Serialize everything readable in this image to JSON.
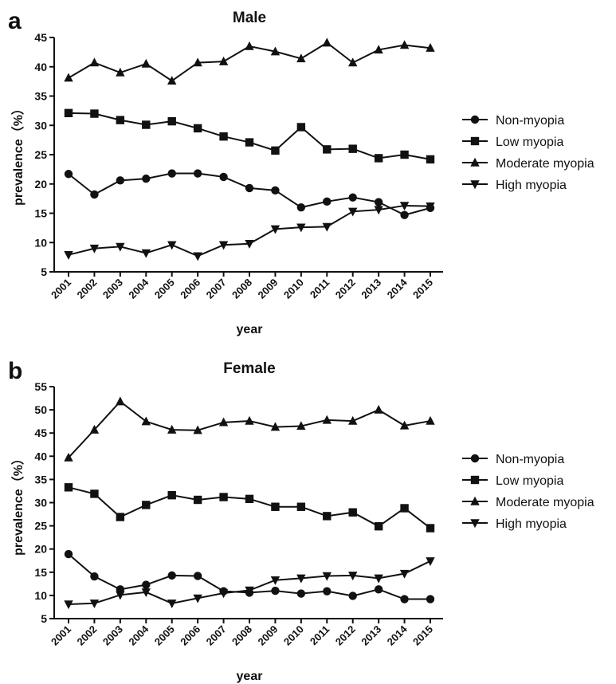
{
  "chart_data": [
    {
      "panel": "a",
      "type": "line",
      "title": "Male",
      "xlabel": "year",
      "ylabel": "prevalence（%）",
      "ylim": [
        5,
        45
      ],
      "yticks": [
        5,
        10,
        15,
        20,
        25,
        30,
        35,
        40,
        45
      ],
      "x": [
        "2001",
        "2002",
        "2003",
        "2004",
        "2005",
        "2006",
        "2007",
        "2008",
        "2009",
        "2010",
        "2011",
        "2012",
        "2013",
        "2014",
        "2015"
      ],
      "grid": false,
      "legend_position": "right",
      "series": [
        {
          "name": "Non-myopia",
          "marker": "circle",
          "values": [
            21.7,
            18.2,
            20.6,
            20.9,
            21.8,
            21.8,
            21.2,
            19.3,
            18.9,
            16.0,
            17.0,
            17.7,
            16.9,
            14.7,
            15.9
          ]
        },
        {
          "name": "Low myopia",
          "marker": "square",
          "values": [
            32.1,
            32.0,
            30.9,
            30.1,
            30.7,
            29.5,
            28.1,
            27.1,
            25.7,
            29.7,
            25.9,
            26.0,
            24.4,
            25.0,
            24.2
          ]
        },
        {
          "name": "Moderate myopia",
          "marker": "triangle-up",
          "values": [
            38.1,
            40.7,
            39.0,
            40.5,
            37.6,
            40.7,
            40.9,
            43.5,
            42.6,
            41.4,
            44.1,
            40.7,
            42.9,
            43.7,
            43.2
          ]
        },
        {
          "name": "High myopia",
          "marker": "triangle-down",
          "values": [
            7.9,
            9.0,
            9.3,
            8.2,
            9.6,
            7.7,
            9.6,
            9.8,
            12.3,
            12.6,
            12.7,
            15.3,
            15.6,
            16.3,
            16.2
          ]
        }
      ]
    },
    {
      "panel": "b",
      "type": "line",
      "title": "Female",
      "xlabel": "year",
      "ylabel": "prevalence（%）",
      "ylim": [
        5,
        55
      ],
      "yticks": [
        5,
        10,
        15,
        20,
        25,
        30,
        35,
        40,
        45,
        50,
        55
      ],
      "x": [
        "2001",
        "2002",
        "2003",
        "2004",
        "2005",
        "2006",
        "2007",
        "2008",
        "2009",
        "2010",
        "2011",
        "2012",
        "2013",
        "2014",
        "2015"
      ],
      "grid": false,
      "legend_position": "right",
      "series": [
        {
          "name": "Non-myopia",
          "marker": "circle",
          "values": [
            18.9,
            14.1,
            11.3,
            12.3,
            14.3,
            14.2,
            10.9,
            10.6,
            11.0,
            10.4,
            10.9,
            9.9,
            11.3,
            9.2,
            9.2
          ]
        },
        {
          "name": "Low myopia",
          "marker": "square",
          "values": [
            33.3,
            31.9,
            26.9,
            29.5,
            31.6,
            30.6,
            31.2,
            30.8,
            29.1,
            29.1,
            27.1,
            27.9,
            24.9,
            28.8,
            24.5
          ]
        },
        {
          "name": "Moderate myopia",
          "marker": "triangle-up",
          "values": [
            39.7,
            45.7,
            51.8,
            47.5,
            45.7,
            45.6,
            47.3,
            47.6,
            46.3,
            46.5,
            47.8,
            47.6,
            50.0,
            46.6,
            47.6
          ]
        },
        {
          "name": "High myopia",
          "marker": "triangle-down",
          "values": [
            8.1,
            8.3,
            10.1,
            10.7,
            8.3,
            9.4,
            10.5,
            11.1,
            13.3,
            13.7,
            14.2,
            14.3,
            13.7,
            14.7,
            17.4
          ]
        }
      ]
    }
  ]
}
